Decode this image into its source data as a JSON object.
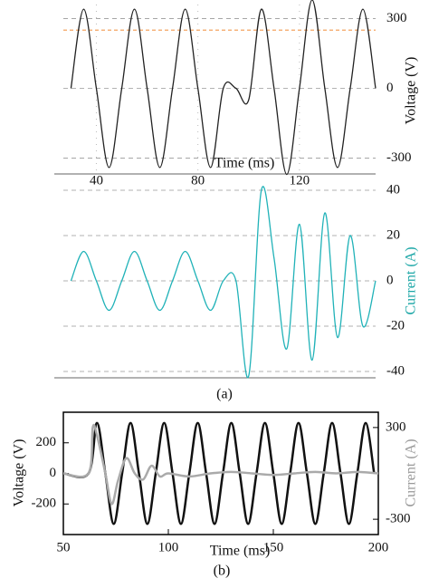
{
  "chart_data": [
    {
      "type": "line",
      "x_label": "Time (ms)",
      "y_label": "Voltage (V)",
      "y_side": "right",
      "xlim": [
        27,
        150
      ],
      "xticks": [
        40,
        80,
        120
      ],
      "ylim": [
        -360,
        360
      ],
      "yticks": [
        300,
        0,
        -300
      ],
      "grid": true,
      "threshold": 250,
      "threshold_color": "#f4a460",
      "x": [
        30,
        35,
        40,
        45,
        50,
        55,
        60,
        65,
        70,
        75,
        80,
        85,
        90,
        95,
        100,
        105,
        110,
        115,
        120,
        125,
        130,
        135,
        140,
        145,
        150
      ],
      "series": [
        {
          "color": "#222222",
          "values": [
            0,
            340,
            0,
            -340,
            0,
            340,
            0,
            -340,
            0,
            340,
            0,
            -340,
            0,
            0,
            -50,
            340,
            0,
            -370,
            0,
            380,
            0,
            -340,
            0,
            340,
            0
          ]
        }
      ]
    },
    {
      "type": "line",
      "y_label": "Current (A)",
      "y_label_color": "#1aa6a6",
      "y_side": "right",
      "caption": "(a)",
      "xlim": [
        27,
        150
      ],
      "ylim": [
        -42,
        42
      ],
      "yticks": [
        40,
        20,
        0,
        -20,
        -40
      ],
      "grid": true,
      "x": [
        30,
        35,
        40,
        45,
        50,
        55,
        60,
        65,
        70,
        75,
        80,
        85,
        90,
        95,
        100,
        105,
        110,
        115,
        120,
        125,
        130,
        135,
        140,
        145,
        150
      ],
      "series": [
        {
          "color": "#20b2b8",
          "values": [
            0,
            13,
            0,
            -13,
            0,
            13,
            0,
            -13,
            0,
            13,
            0,
            -13,
            0,
            0,
            -42,
            40,
            10,
            -30,
            25,
            -35,
            30,
            -25,
            20,
            -20,
            0
          ]
        }
      ]
    },
    {
      "type": "line",
      "x_label": "Time (ms)",
      "y_label": "Voltage (V)",
      "y2_label": "Current (A)",
      "y2_label_color": "#999999",
      "caption": "(b)",
      "xlim": [
        50,
        200
      ],
      "xticks": [
        50,
        100,
        150,
        200
      ],
      "ylim": [
        -400,
        400
      ],
      "yticks": [
        200,
        0,
        -200
      ],
      "y2lim": [
        -400,
        400
      ],
      "y2ticks": [
        300,
        -300
      ],
      "series": [
        {
          "color": "#111111",
          "x": [
            50,
            62,
            66,
            70,
            74,
            78,
            82,
            86,
            90,
            94,
            98,
            102,
            106,
            110,
            114,
            118,
            122,
            126,
            130,
            134,
            138,
            142,
            146,
            150,
            154,
            158,
            162,
            166,
            170,
            174,
            178,
            182,
            186,
            190,
            194,
            198
          ],
          "values": [
            0,
            0,
            330,
            0,
            -330,
            0,
            330,
            0,
            -330,
            0,
            330,
            0,
            -330,
            0,
            330,
            0,
            -330,
            0,
            330,
            0,
            -330,
            0,
            330,
            0,
            -330,
            0,
            330,
            0,
            -330,
            0,
            330,
            0,
            -330,
            0,
            330,
            0
          ]
        },
        {
          "color": "#aaaaaa",
          "axis": "y2",
          "x": [
            50,
            62,
            64,
            66,
            70,
            73,
            76,
            80,
            84,
            88,
            92,
            96,
            100,
            110,
            120,
            130,
            140,
            150,
            160,
            170,
            180,
            190,
            200
          ],
          "values": [
            0,
            0,
            300,
            250,
            0,
            -200,
            -50,
            100,
            0,
            -40,
            50,
            -20,
            0,
            -20,
            0,
            10,
            0,
            -10,
            0,
            10,
            0,
            10,
            0
          ]
        }
      ]
    }
  ]
}
